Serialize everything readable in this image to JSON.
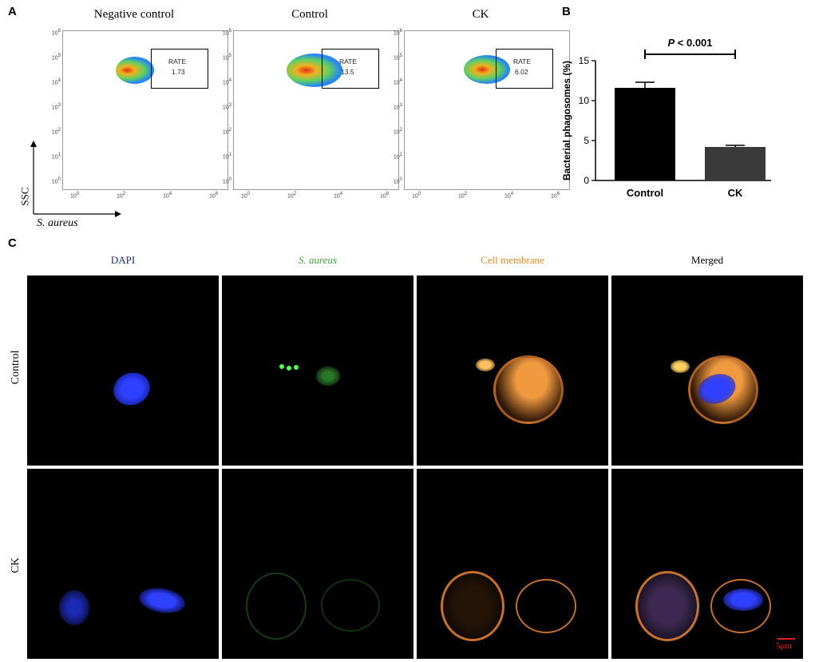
{
  "panels": {
    "a": "A",
    "b": "B",
    "c": "C"
  },
  "flow": {
    "titles": [
      "Negative control",
      "Control",
      "CK"
    ],
    "gate_label": "RATE",
    "rates": [
      "1.73",
      "13.5",
      "6.02"
    ],
    "y_axis_label": "SSC",
    "x_axis_label": "S. aureus",
    "y_ticks": [
      "10",
      "10",
      "10",
      "10",
      "10",
      "10",
      "10"
    ],
    "y_tick_exps": [
      "6",
      "5",
      "4",
      "3",
      "2",
      "1",
      "0"
    ],
    "x_ticks": [
      "10",
      "10",
      "10",
      "10"
    ],
    "x_tick_exps": [
      "0",
      "2",
      "4",
      "6"
    ]
  },
  "chart_data": {
    "type": "bar",
    "categories": [
      "Control",
      "CK"
    ],
    "values": [
      11.6,
      4.2
    ],
    "errors": [
      0.7,
      0.2
    ],
    "bar_colors": [
      "#000000",
      "#3a3a3a"
    ],
    "ylabel": "Bacterial phagosomes (%)",
    "ylim": [
      0,
      15
    ],
    "yticks": [
      "0",
      "5",
      "10",
      "15"
    ],
    "annotation_italic": "P",
    "annotation_rest": " < 0.001"
  },
  "micro": {
    "columns": [
      {
        "label": "DAPI",
        "color": "#1c2a80"
      },
      {
        "label": "S. aureus",
        "color": "#3aa63a"
      },
      {
        "label": "Cell membrane",
        "color": "#e8892a"
      },
      {
        "label": "Merged",
        "color": "#000000"
      }
    ],
    "rows": [
      "Control",
      "CK"
    ],
    "scale_bar": "5μm",
    "scale_color": "#e02020"
  }
}
